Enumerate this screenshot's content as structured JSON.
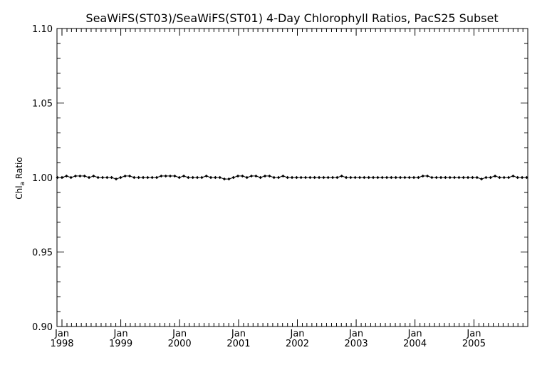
{
  "chart_data": {
    "type": "line",
    "title": "SeaWiFS(ST03)/SeaWiFS(ST01) 4-Day Chlorophyll Ratios, PacS25 Subset",
    "xlabel": "",
    "ylabel": {
      "main": "Chl",
      "subscript": "a",
      "suffix": " Ratio"
    },
    "xlim": [
      "1997-12-01",
      "2005-12-01"
    ],
    "ylim": [
      0.9,
      1.1
    ],
    "yticks": [
      "0.90",
      "0.95",
      "1.00",
      "1.05",
      "1.10"
    ],
    "xticks": [
      {
        "date": "1998-01-01",
        "month": "Jan",
        "year": "1998"
      },
      {
        "date": "1999-01-01",
        "month": "Jan",
        "year": "1999"
      },
      {
        "date": "2000-01-01",
        "month": "Jan",
        "year": "2000"
      },
      {
        "date": "2001-01-01",
        "month": "Jan",
        "year": "2001"
      },
      {
        "date": "2002-01-01",
        "month": "Jan",
        "year": "2002"
      },
      {
        "date": "2003-01-01",
        "month": "Jan",
        "year": "2003"
      },
      {
        "date": "2004-01-01",
        "month": "Jan",
        "year": "2004"
      },
      {
        "date": "2005-01-01",
        "month": "Jan",
        "year": "2005"
      }
    ],
    "grid": false,
    "series": [
      {
        "color": "#000000",
        "marker": "diamond",
        "points": [
          [
            "1997-12-04",
            1.0
          ],
          [
            "1998-01-01",
            1.0
          ],
          [
            "1998-01-29",
            1.001
          ],
          [
            "1998-02-26",
            1.0
          ],
          [
            "1998-03-26",
            1.001
          ],
          [
            "1998-04-23",
            1.001
          ],
          [
            "1998-05-21",
            1.001
          ],
          [
            "1998-06-18",
            1.0
          ],
          [
            "1998-07-16",
            1.001
          ],
          [
            "1998-08-13",
            1.0
          ],
          [
            "1998-09-10",
            1.0
          ],
          [
            "1998-10-08",
            1.0
          ],
          [
            "1998-11-05",
            1.0
          ],
          [
            "1998-12-03",
            0.999
          ],
          [
            "1998-12-31",
            1.0
          ],
          [
            "1999-01-28",
            1.001
          ],
          [
            "1999-02-25",
            1.001
          ],
          [
            "1999-03-25",
            1.0
          ],
          [
            "1999-04-22",
            1.0
          ],
          [
            "1999-05-20",
            1.0
          ],
          [
            "1999-06-17",
            1.0
          ],
          [
            "1999-07-15",
            1.0
          ],
          [
            "1999-08-12",
            1.0
          ],
          [
            "1999-09-09",
            1.001
          ],
          [
            "1999-10-07",
            1.001
          ],
          [
            "1999-11-04",
            1.001
          ],
          [
            "1999-12-02",
            1.001
          ],
          [
            "1999-12-30",
            1.0
          ],
          [
            "2000-01-27",
            1.001
          ],
          [
            "2000-02-24",
            1.0
          ],
          [
            "2000-03-23",
            1.0
          ],
          [
            "2000-04-20",
            1.0
          ],
          [
            "2000-05-18",
            1.0
          ],
          [
            "2000-06-15",
            1.001
          ],
          [
            "2000-07-13",
            1.0
          ],
          [
            "2000-08-10",
            1.0
          ],
          [
            "2000-09-07",
            1.0
          ],
          [
            "2000-10-05",
            0.999
          ],
          [
            "2000-11-02",
            0.999
          ],
          [
            "2000-11-30",
            1.0
          ],
          [
            "2000-12-28",
            1.001
          ],
          [
            "2001-01-25",
            1.001
          ],
          [
            "2001-02-22",
            1.0
          ],
          [
            "2001-03-22",
            1.001
          ],
          [
            "2001-04-19",
            1.001
          ],
          [
            "2001-05-17",
            1.0
          ],
          [
            "2001-06-14",
            1.001
          ],
          [
            "2001-07-12",
            1.001
          ],
          [
            "2001-08-09",
            1.0
          ],
          [
            "2001-09-06",
            1.0
          ],
          [
            "2001-10-04",
            1.001
          ],
          [
            "2001-11-01",
            1.0
          ],
          [
            "2001-11-29",
            1.0
          ],
          [
            "2001-12-27",
            1.0
          ],
          [
            "2002-01-24",
            1.0
          ],
          [
            "2002-02-21",
            1.0
          ],
          [
            "2002-03-21",
            1.0
          ],
          [
            "2002-04-18",
            1.0
          ],
          [
            "2002-05-16",
            1.0
          ],
          [
            "2002-06-13",
            1.0
          ],
          [
            "2002-07-11",
            1.0
          ],
          [
            "2002-08-08",
            1.0
          ],
          [
            "2002-09-05",
            1.0
          ],
          [
            "2002-10-03",
            1.001
          ],
          [
            "2002-10-31",
            1.0
          ],
          [
            "2002-11-28",
            1.0
          ],
          [
            "2002-12-26",
            1.0
          ],
          [
            "2003-01-23",
            1.0
          ],
          [
            "2003-02-20",
            1.0
          ],
          [
            "2003-03-20",
            1.0
          ],
          [
            "2003-04-17",
            1.0
          ],
          [
            "2003-05-15",
            1.0
          ],
          [
            "2003-06-12",
            1.0
          ],
          [
            "2003-07-10",
            1.0
          ],
          [
            "2003-08-07",
            1.0
          ],
          [
            "2003-09-04",
            1.0
          ],
          [
            "2003-10-02",
            1.0
          ],
          [
            "2003-10-30",
            1.0
          ],
          [
            "2003-11-27",
            1.0
          ],
          [
            "2003-12-25",
            1.0
          ],
          [
            "2004-01-22",
            1.0
          ],
          [
            "2004-02-19",
            1.001
          ],
          [
            "2004-03-18",
            1.001
          ],
          [
            "2004-04-15",
            1.0
          ],
          [
            "2004-05-13",
            1.0
          ],
          [
            "2004-06-10",
            1.0
          ],
          [
            "2004-07-08",
            1.0
          ],
          [
            "2004-08-05",
            1.0
          ],
          [
            "2004-09-02",
            1.0
          ],
          [
            "2004-09-30",
            1.0
          ],
          [
            "2004-10-28",
            1.0
          ],
          [
            "2004-11-25",
            1.0
          ],
          [
            "2004-12-23",
            1.0
          ],
          [
            "2005-01-20",
            1.0
          ],
          [
            "2005-02-17",
            0.999
          ],
          [
            "2005-03-17",
            1.0
          ],
          [
            "2005-04-14",
            1.0
          ],
          [
            "2005-05-12",
            1.001
          ],
          [
            "2005-06-09",
            1.0
          ],
          [
            "2005-07-07",
            1.0
          ],
          [
            "2005-08-04",
            1.0
          ],
          [
            "2005-09-01",
            1.001
          ],
          [
            "2005-09-29",
            1.0
          ],
          [
            "2005-10-27",
            1.0
          ],
          [
            "2005-11-24",
            1.0
          ]
        ]
      }
    ]
  }
}
